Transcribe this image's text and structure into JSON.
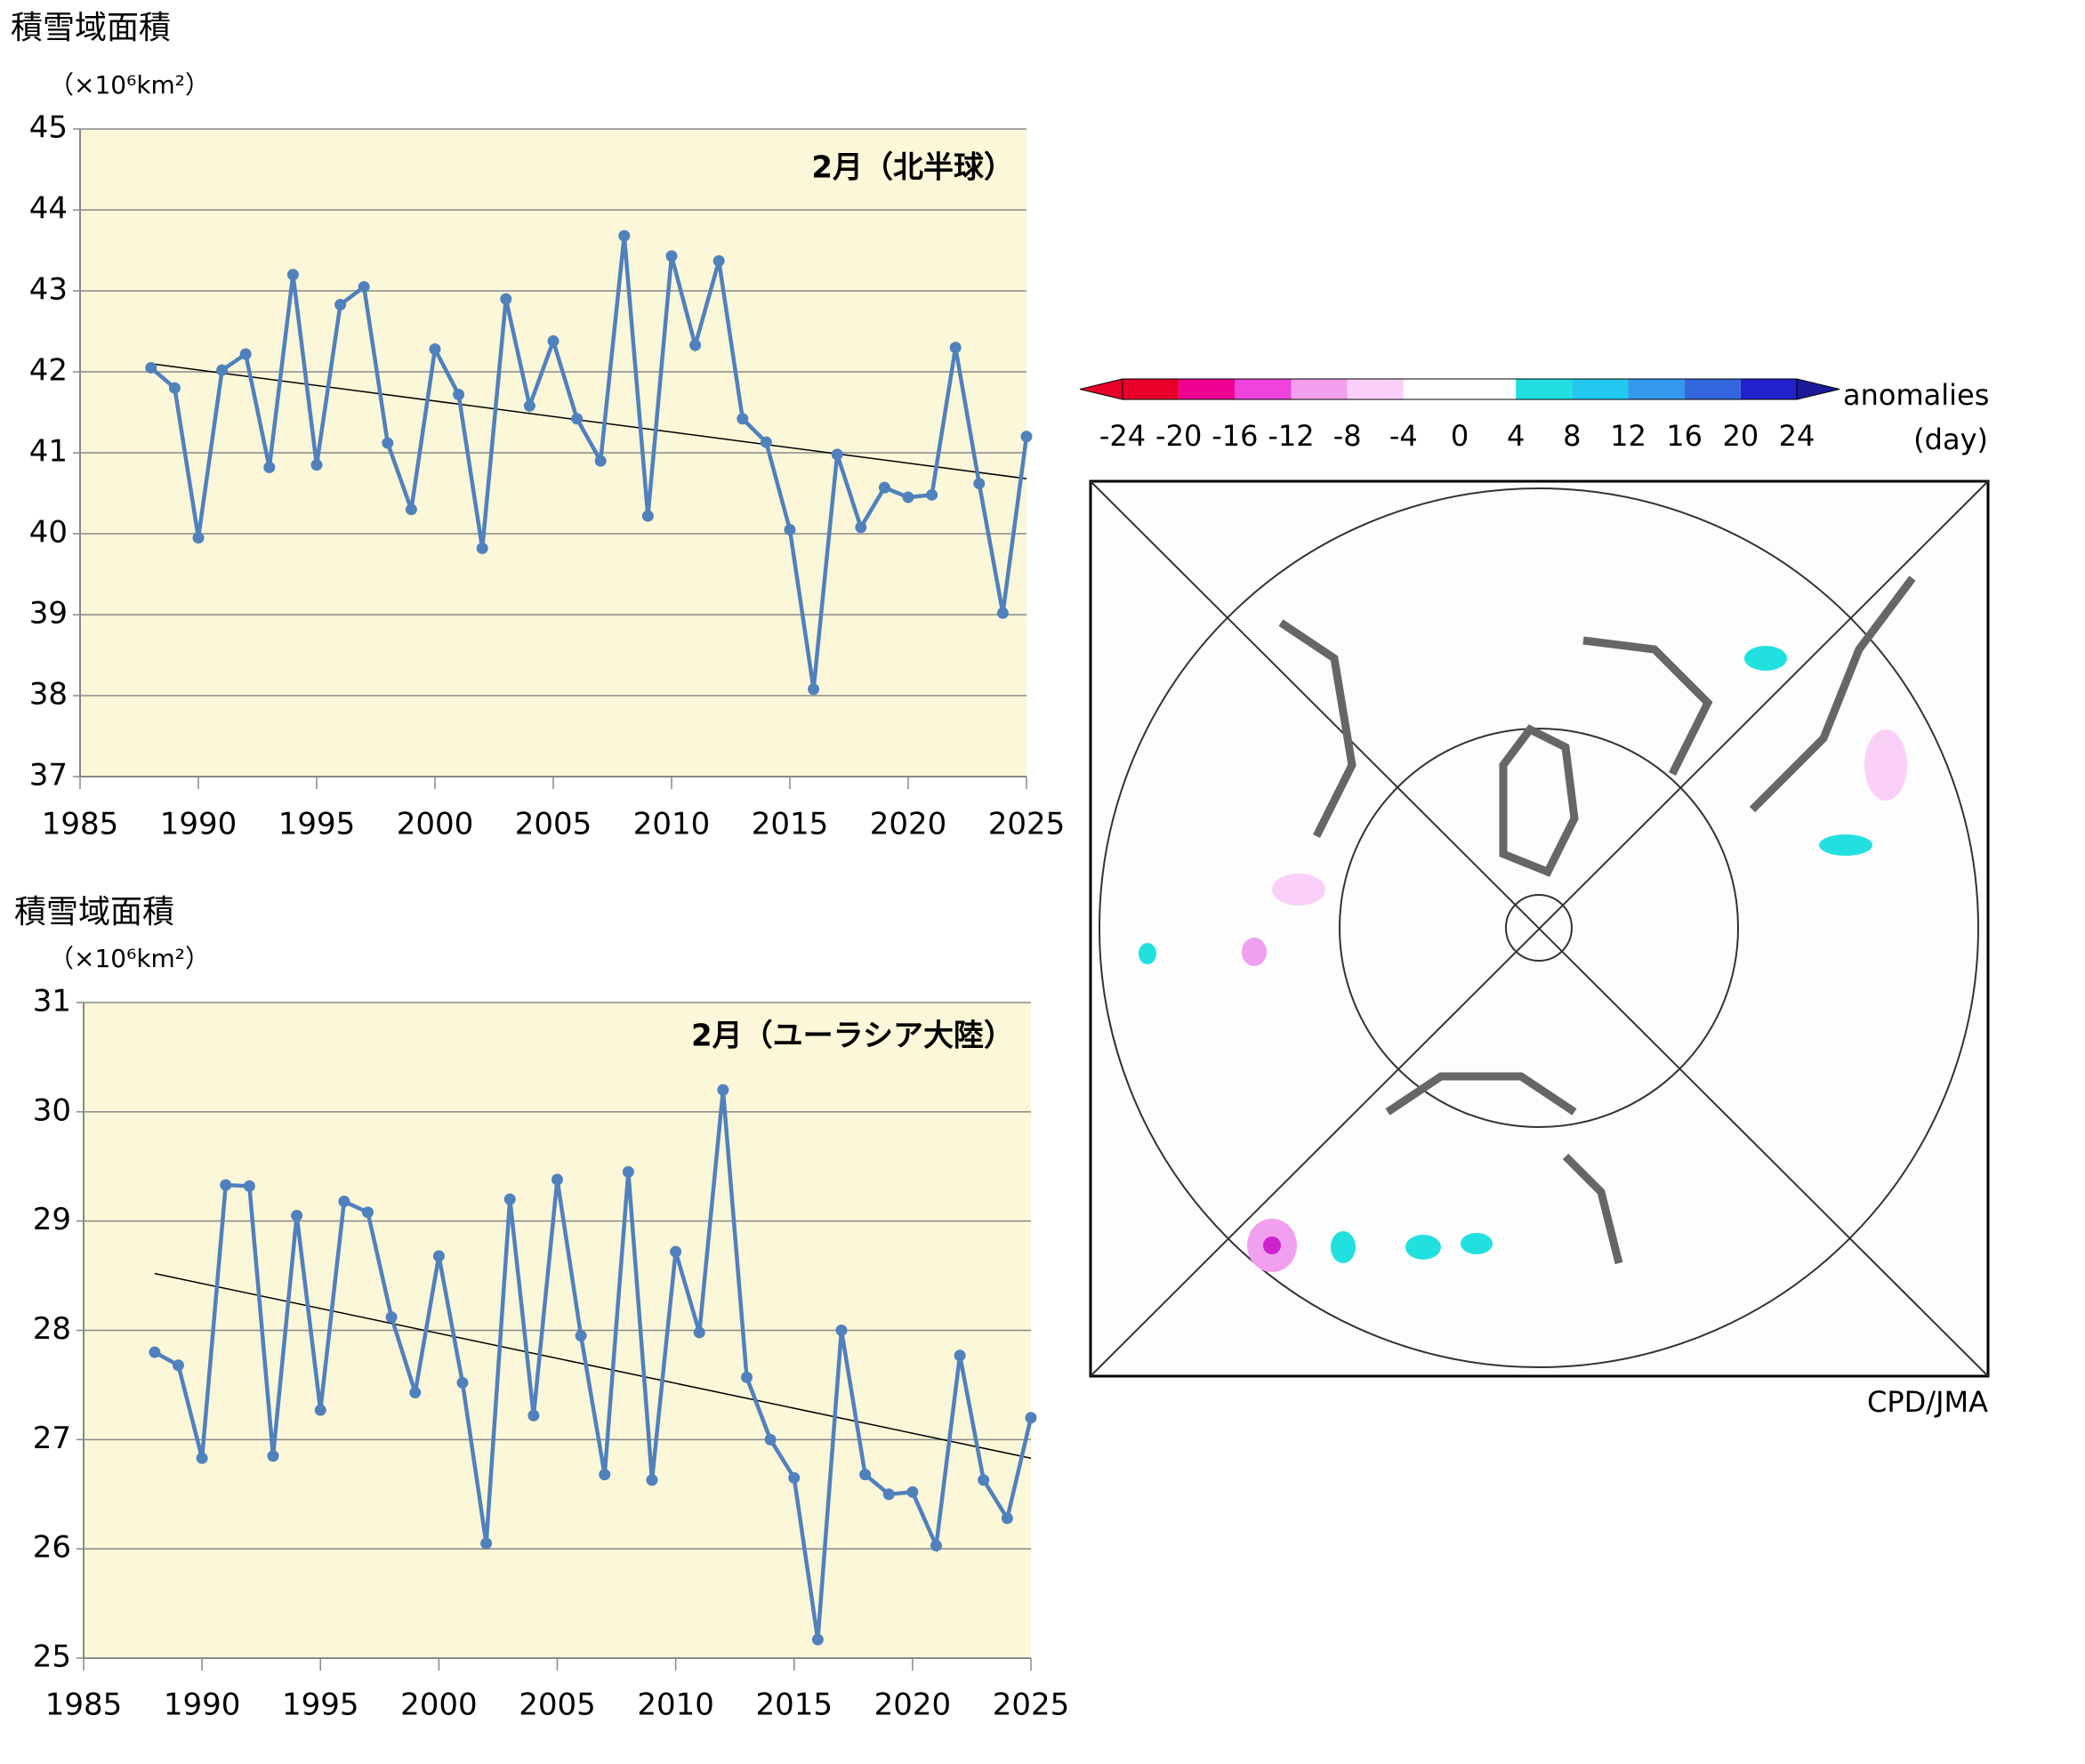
{
  "chart_data": [
    {
      "type": "line",
      "title": "積雪域面積",
      "unit": "（×10⁶km²）",
      "subtitle": "2月（北半球）",
      "x": [
        1988,
        1989,
        1990,
        1991,
        1992,
        1993,
        1994,
        1995,
        1996,
        1997,
        1998,
        1999,
        2000,
        2001,
        2002,
        2003,
        2004,
        2005,
        2006,
        2007,
        2008,
        2009,
        2010,
        2011,
        2012,
        2013,
        2014,
        2015,
        2016,
        2017,
        2018,
        2019,
        2020,
        2021,
        2022,
        2023,
        2024,
        2025
      ],
      "values": [
        42.05,
        41.8,
        39.95,
        42.02,
        42.22,
        40.82,
        43.2,
        40.85,
        42.83,
        43.05,
        41.12,
        40.3,
        42.28,
        41.72,
        39.82,
        42.9,
        41.58,
        42.38,
        41.42,
        40.9,
        43.68,
        40.22,
        43.43,
        42.33,
        43.37,
        41.42,
        41.13,
        40.05,
        38.08,
        40.98,
        40.08,
        40.57,
        40.45,
        40.48,
        42.3,
        40.62,
        39.02,
        41.2
      ],
      "color": "#4f81bd",
      "trend_x": [
        1988,
        2025
      ],
      "trend_values": [
        42.1,
        40.68
      ],
      "xlim": [
        1985,
        2025
      ],
      "xticks": [
        1985,
        1990,
        1995,
        2000,
        2005,
        2010,
        2015,
        2020,
        2025
      ],
      "ylim": [
        37,
        45
      ],
      "yticks": [
        37,
        38,
        39,
        40,
        41,
        42,
        43,
        44,
        45
      ],
      "grid": true,
      "background": "#fcf7d8"
    },
    {
      "type": "line",
      "title": "積雪域面積",
      "unit": "（×10⁶km²）",
      "subtitle": "2月（ユーラシア大陸）",
      "x": [
        1988,
        1989,
        1990,
        1991,
        1992,
        1993,
        1994,
        1995,
        1996,
        1997,
        1998,
        1999,
        2000,
        2001,
        2002,
        2003,
        2004,
        2005,
        2006,
        2007,
        2008,
        2009,
        2010,
        2011,
        2012,
        2013,
        2014,
        2015,
        2016,
        2017,
        2018,
        2019,
        2020,
        2021,
        2022,
        2023,
        2024,
        2025
      ],
      "values": [
        27.8,
        27.68,
        26.83,
        29.33,
        29.32,
        26.85,
        29.05,
        27.27,
        29.18,
        29.08,
        28.12,
        27.43,
        28.68,
        27.52,
        26.05,
        29.2,
        27.22,
        29.38,
        27.95,
        26.68,
        29.45,
        26.63,
        28.72,
        27.98,
        30.2,
        27.57,
        27.0,
        26.65,
        25.17,
        28.0,
        26.68,
        26.5,
        26.52,
        26.03,
        27.77,
        26.63,
        26.28,
        27.2
      ],
      "color": "#4f81bd",
      "trend_x": [
        1988,
        2025
      ],
      "trend_values": [
        28.52,
        26.83
      ],
      "xlim": [
        1985,
        2025
      ],
      "xticks": [
        1985,
        1990,
        1995,
        2000,
        2005,
        2010,
        2015,
        2020,
        2025
      ],
      "ylim": [
        25,
        31
      ],
      "yticks": [
        25,
        26,
        27,
        28,
        29,
        30,
        31
      ],
      "grid": true,
      "background": "#fcf7d8"
    }
  ],
  "map": {
    "colorbar_ticks": [
      -24,
      -20,
      -16,
      -12,
      -8,
      -4,
      0,
      4,
      8,
      12,
      16,
      20,
      24
    ],
    "colorbar_colors": [
      "#e8002a",
      "#e8002a",
      "#ee0090",
      "#ee44dd",
      "#f5a0ee",
      "#fbd0f8",
      "#ffffff",
      "#ffffff",
      "#22e0e0",
      "#22c8f0",
      "#3399ee",
      "#3366dd",
      "#2222cc",
      "#1a1a99"
    ],
    "label": "anomalies",
    "unit": "(day)",
    "credit": "CPD/JMA"
  }
}
